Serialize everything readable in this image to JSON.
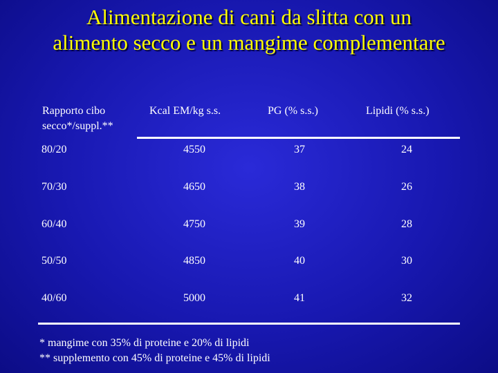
{
  "title": {
    "line1": "Alimentazione di cani da slitta con un",
    "line2": "alimento secco e un mangime complementare"
  },
  "table": {
    "headers": {
      "ratio_line1": "Rapporto cibo",
      "ratio_line2": "secco*/suppl.**",
      "kcal": "Kcal EM/kg s.s.",
      "pg": "PG (% s.s.)",
      "lipidi": "Lipidi (% s.s.)"
    },
    "rows": [
      {
        "ratio": "80/20",
        "kcal": "4550",
        "pg": "37",
        "lipidi": "24"
      },
      {
        "ratio": "70/30",
        "kcal": "4650",
        "pg": "38",
        "lipidi": "26"
      },
      {
        "ratio": "60/40",
        "kcal": "4750",
        "pg": "39",
        "lipidi": "28"
      },
      {
        "ratio": "50/50",
        "kcal": "4850",
        "pg": "40",
        "lipidi": "30"
      },
      {
        "ratio": "40/60",
        "kcal": "5000",
        "pg": "41",
        "lipidi": "32"
      }
    ]
  },
  "footnotes": {
    "note1": "* mangime con 35% di proteine e 20% di lipidi",
    "note2": "** supplemento con 45% di proteine e 45% di lipidi"
  }
}
